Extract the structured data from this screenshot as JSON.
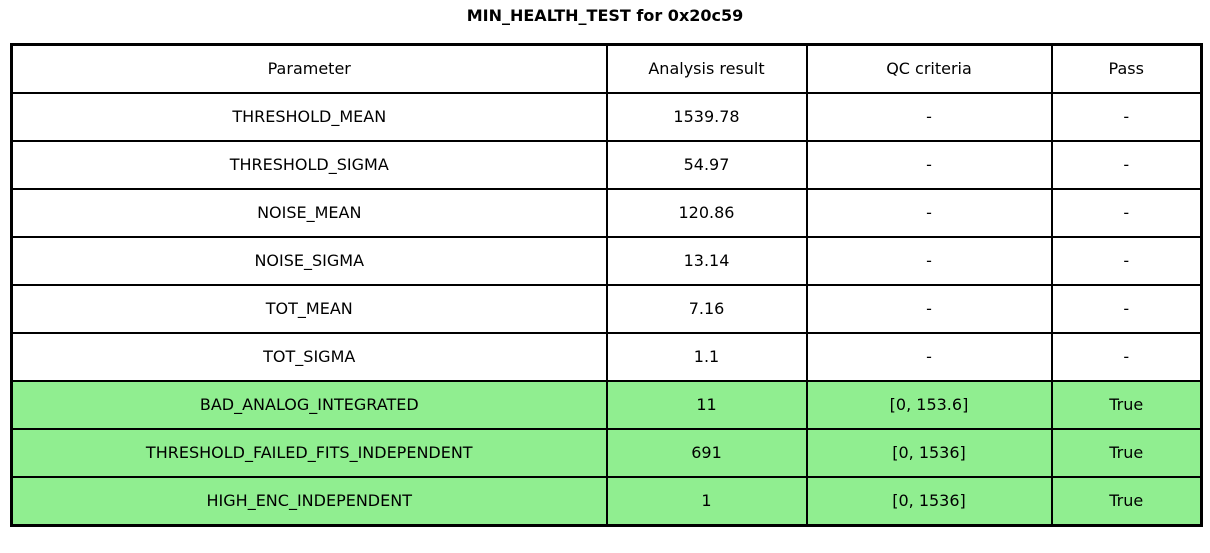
{
  "title": "MIN_HEALTH_TEST for 0x20c59",
  "colors": {
    "pass_highlight": "#90EE90",
    "border": "#000000",
    "background": "#FFFFFF",
    "text": "#000000"
  },
  "table": {
    "columns": [
      "Parameter",
      "Analysis result",
      "QC criteria",
      "Pass"
    ],
    "rows": [
      {
        "parameter": "THRESHOLD_MEAN",
        "analysis_result": "1539.78",
        "qc_criteria": "-",
        "pass": "-",
        "highlight": false
      },
      {
        "parameter": "THRESHOLD_SIGMA",
        "analysis_result": "54.97",
        "qc_criteria": "-",
        "pass": "-",
        "highlight": false
      },
      {
        "parameter": "NOISE_MEAN",
        "analysis_result": "120.86",
        "qc_criteria": "-",
        "pass": "-",
        "highlight": false
      },
      {
        "parameter": "NOISE_SIGMA",
        "analysis_result": "13.14",
        "qc_criteria": "-",
        "pass": "-",
        "highlight": false
      },
      {
        "parameter": "TOT_MEAN",
        "analysis_result": "7.16",
        "qc_criteria": "-",
        "pass": "-",
        "highlight": false
      },
      {
        "parameter": "TOT_SIGMA",
        "analysis_result": "1.1",
        "qc_criteria": "-",
        "pass": "-",
        "highlight": false
      },
      {
        "parameter": "BAD_ANALOG_INTEGRATED",
        "analysis_result": "11",
        "qc_criteria": "[0, 153.6]",
        "pass": "True",
        "highlight": true
      },
      {
        "parameter": "THRESHOLD_FAILED_FITS_INDEPENDENT",
        "analysis_result": "691",
        "qc_criteria": "[0, 1536]",
        "pass": "True",
        "highlight": true
      },
      {
        "parameter": "HIGH_ENC_INDEPENDENT",
        "analysis_result": "1",
        "qc_criteria": "[0, 1536]",
        "pass": "True",
        "highlight": true
      }
    ]
  },
  "chart_data": {
    "type": "table",
    "title": "MIN_HEALTH_TEST for 0x20c59",
    "columns": [
      "Parameter",
      "Analysis result",
      "QC criteria",
      "Pass"
    ],
    "rows": [
      [
        "THRESHOLD_MEAN",
        "1539.78",
        "-",
        "-"
      ],
      [
        "THRESHOLD_SIGMA",
        "54.97",
        "-",
        "-"
      ],
      [
        "NOISE_MEAN",
        "120.86",
        "-",
        "-"
      ],
      [
        "NOISE_SIGMA",
        "13.14",
        "-",
        "-"
      ],
      [
        "TOT_MEAN",
        "7.16",
        "-",
        "-"
      ],
      [
        "TOT_SIGMA",
        "1.1",
        "-",
        "-"
      ],
      [
        "BAD_ANALOG_INTEGRATED",
        "11",
        "[0, 153.6]",
        "True"
      ],
      [
        "THRESHOLD_FAILED_FITS_INDEPENDENT",
        "691",
        "[0, 1536]",
        "True"
      ],
      [
        "HIGH_ENC_INDEPENDENT",
        "1",
        "[0, 1536]",
        "True"
      ]
    ],
    "highlighted_rows": [
      6,
      7,
      8
    ],
    "highlight_color": "#90EE90",
    "layout_hints": {
      "grid": true,
      "all_cells_centered": true,
      "title_position": "top-center"
    }
  }
}
